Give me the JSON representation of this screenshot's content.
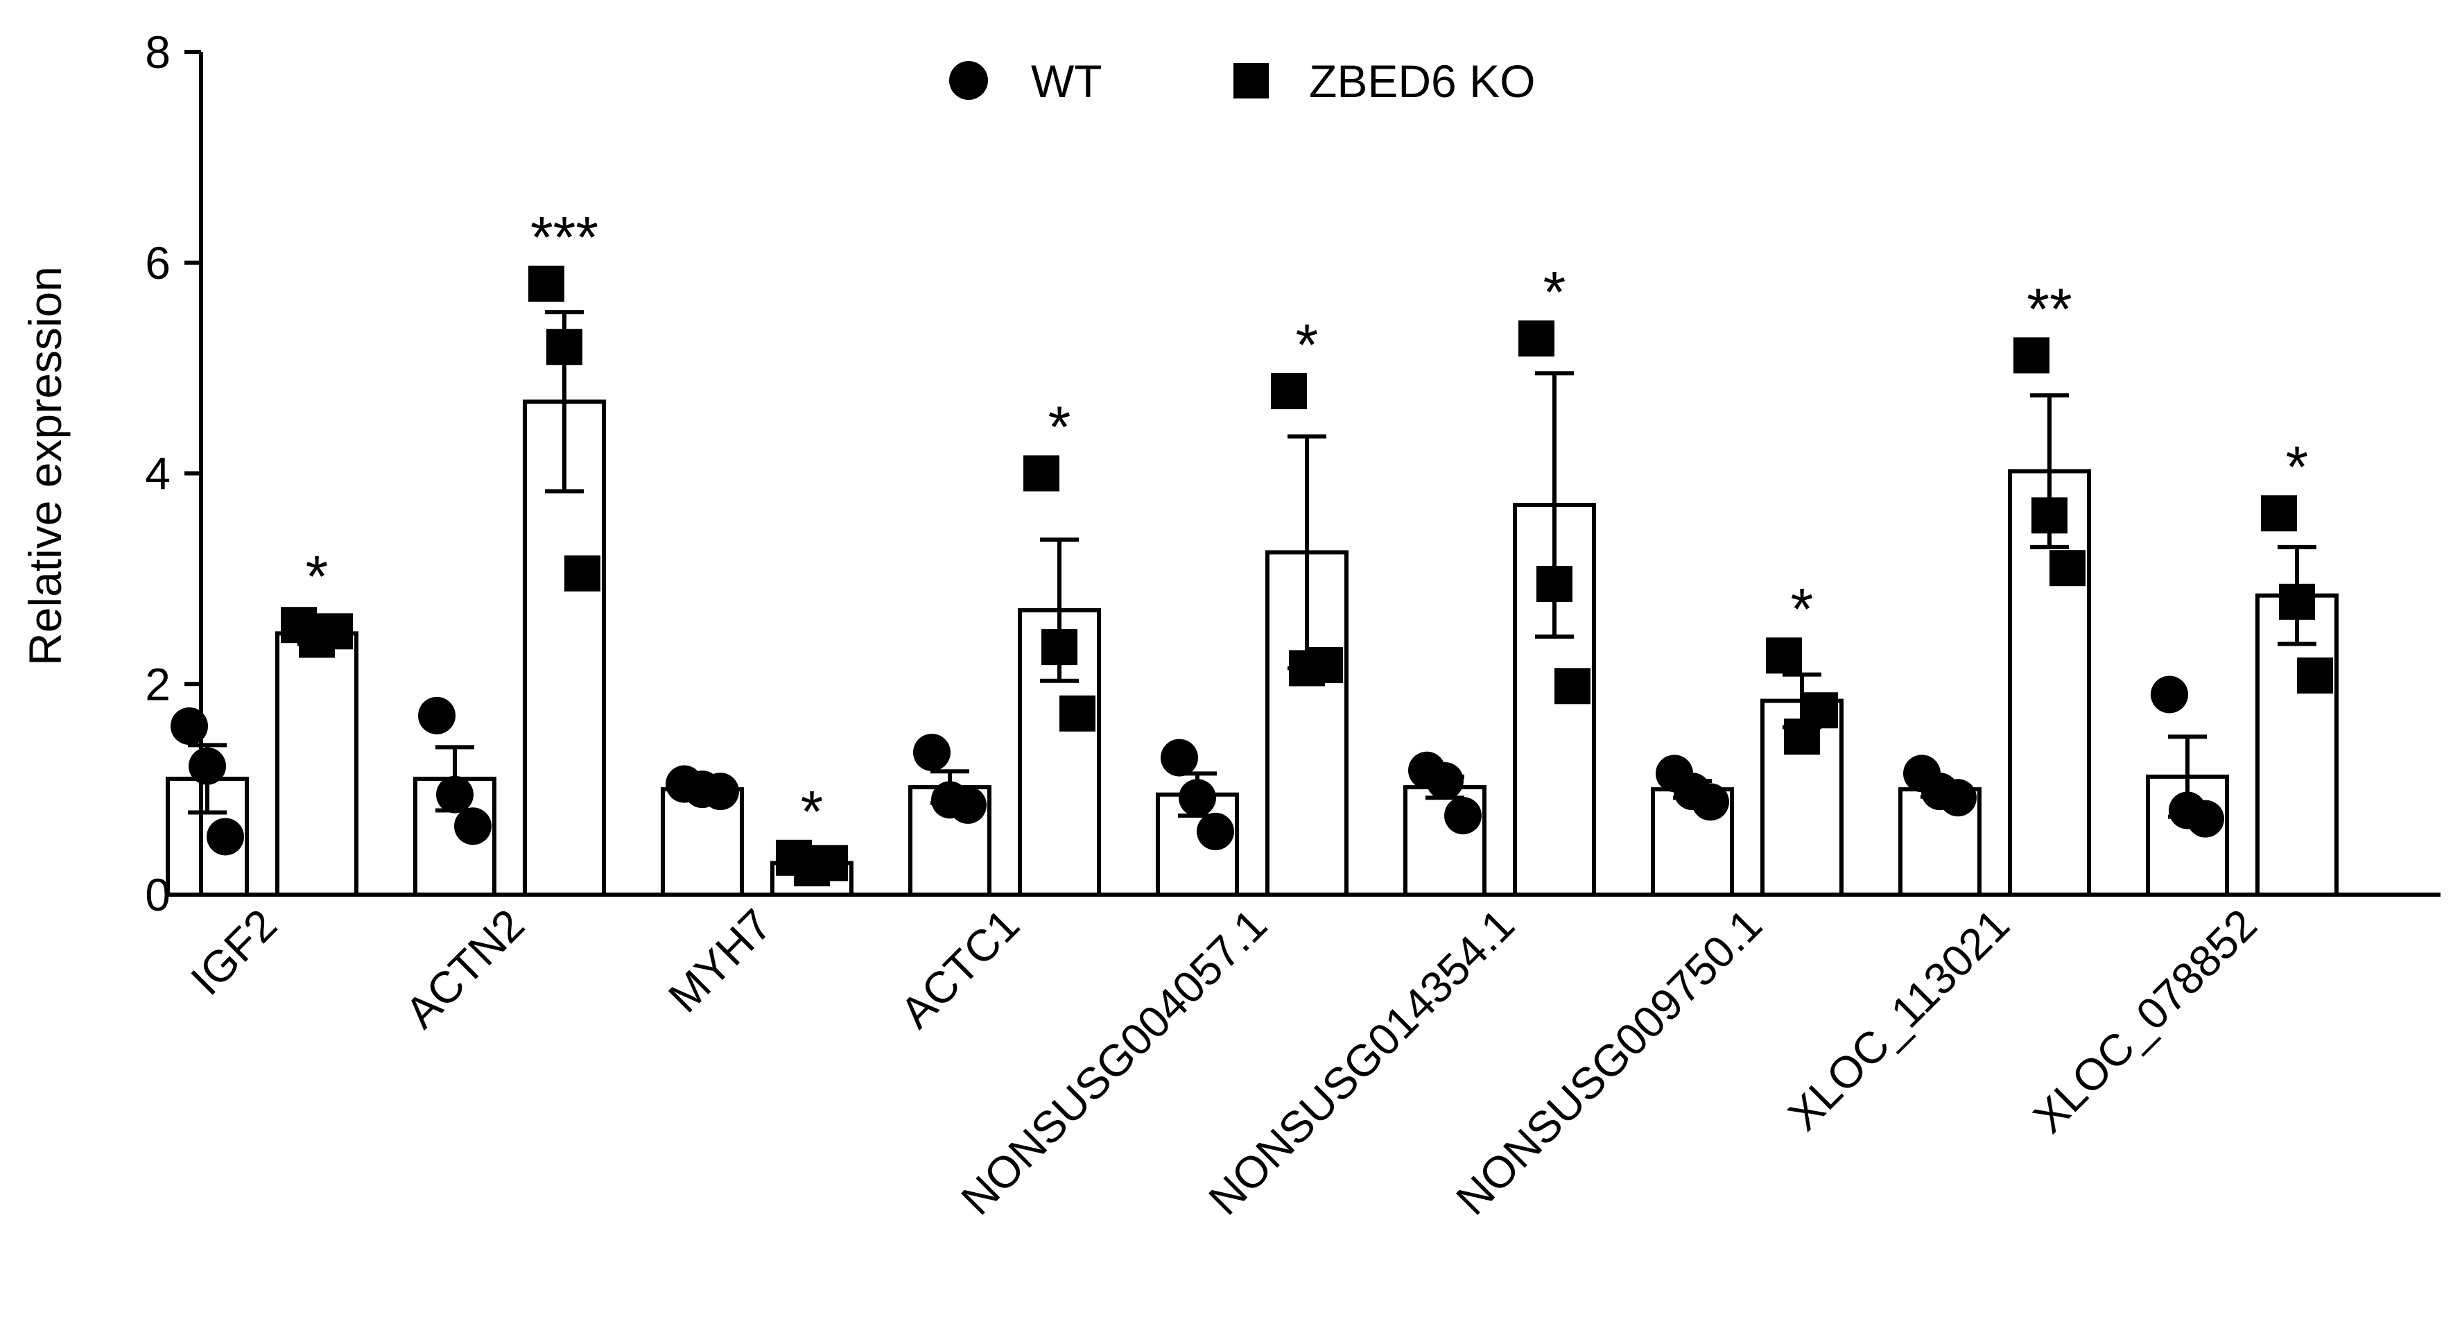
{
  "chart_data": {
    "type": "bar",
    "title": "",
    "xlabel": "",
    "ylabel": "Relative expression",
    "ylim": [
      0,
      8
    ],
    "yticks": [
      "0",
      "2",
      "4",
      "6",
      "8"
    ],
    "categories": [
      "IGF2",
      "ACTN2",
      "MYH7",
      "ACTC1",
      "NONSUSG004057.1",
      "NONSUSG014354.1",
      "NONSUSG009750.1",
      "XLOC_113021",
      "XLOC_078852"
    ],
    "series": [
      {
        "name": "WT",
        "marker": "circle",
        "values": [
          1.1,
          1.1,
          1.0,
          1.02,
          0.95,
          1.02,
          1.0,
          1.0,
          1.12
        ],
        "sem": [
          0.32,
          0.3,
          0.04,
          0.15,
          0.2,
          0.1,
          0.08,
          0.07,
          0.38
        ],
        "points": [
          [
            1.6,
            1.22,
            0.55
          ],
          [
            1.7,
            0.95,
            0.65
          ],
          [
            1.05,
            1.0,
            0.98
          ],
          [
            1.35,
            0.9,
            0.85
          ],
          [
            1.3,
            0.92,
            0.6
          ],
          [
            1.18,
            1.08,
            0.75
          ],
          [
            1.15,
            0.98,
            0.88
          ],
          [
            1.15,
            0.98,
            0.92
          ],
          [
            1.9,
            0.8,
            0.72
          ]
        ]
      },
      {
        "name": "ZBED6 KO",
        "marker": "square",
        "values": [
          2.48,
          4.68,
          0.3,
          2.7,
          3.25,
          3.7,
          1.84,
          4.02,
          2.84
        ],
        "sem": [
          0.1,
          0.85,
          0.05,
          0.67,
          1.1,
          1.25,
          0.25,
          0.72,
          0.46
        ],
        "points": [
          [
            2.56,
            2.42,
            2.5
          ],
          [
            5.8,
            5.2,
            3.05
          ],
          [
            0.35,
            0.25,
            0.3
          ],
          [
            4.0,
            2.35,
            1.72
          ],
          [
            4.78,
            2.15,
            2.18
          ],
          [
            5.28,
            2.95,
            1.98
          ],
          [
            2.27,
            1.5,
            1.75
          ],
          [
            5.12,
            3.6,
            3.1
          ],
          [
            3.62,
            2.78,
            2.08
          ]
        ]
      }
    ],
    "significance": [
      "*",
      "***",
      "*",
      "*",
      "*",
      "*",
      "*",
      "**",
      "*"
    ],
    "legend": {
      "position": "top-center",
      "entries": [
        "WT",
        "ZBED6 KO"
      ]
    }
  }
}
